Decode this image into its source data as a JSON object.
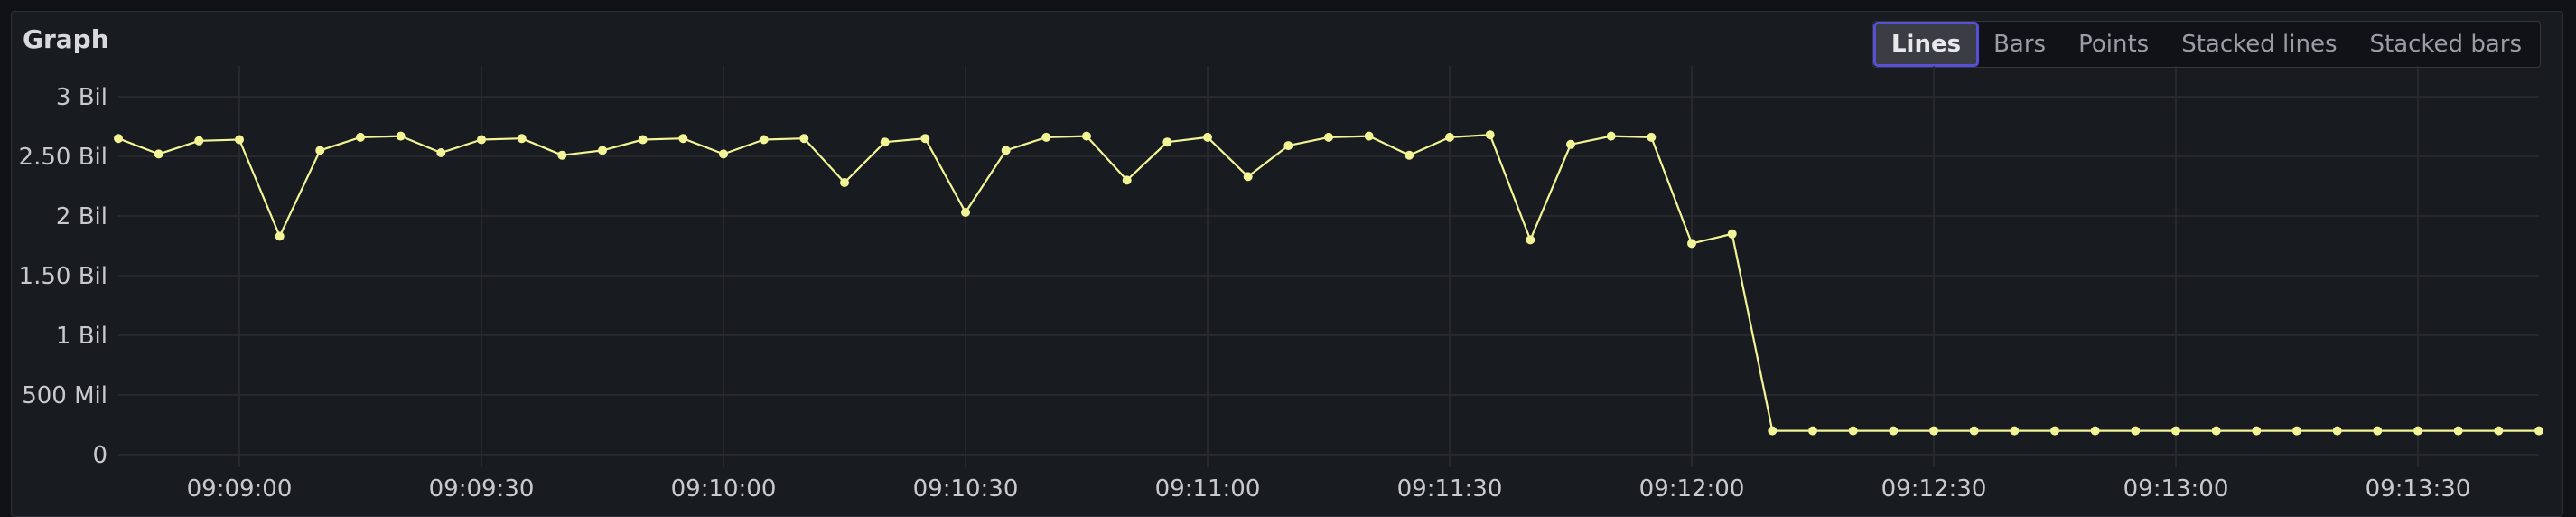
{
  "panel": {
    "title": "Graph"
  },
  "toggles": [
    {
      "label": "Lines",
      "active": true
    },
    {
      "label": "Bars",
      "active": false
    },
    {
      "label": "Points",
      "active": false
    },
    {
      "label": "Stacked lines",
      "active": false
    },
    {
      "label": "Stacked bars",
      "active": false
    }
  ],
  "colors": {
    "series": "#f2f495",
    "active_outline": "#5650d8"
  },
  "chart_data": {
    "type": "line",
    "title": "",
    "xlabel": "",
    "ylabel": "",
    "ylim": [
      0,
      3000000000
    ],
    "y_ticks": [
      0,
      500000000,
      1000000000,
      1500000000,
      2000000000,
      2500000000,
      3000000000
    ],
    "y_tick_labels": [
      "0",
      "500 Mil",
      "1 Bil",
      "1.50 Bil",
      "2 Bil",
      "2.50 Bil",
      "3 Bil"
    ],
    "x_range": [
      "09:08:45",
      "09:13:45"
    ],
    "x_ticks": [
      "09:09:00",
      "09:09:30",
      "09:10:00",
      "09:10:30",
      "09:11:00",
      "09:11:30",
      "09:12:00",
      "09:12:30",
      "09:13:00",
      "09:13:30"
    ],
    "grid": true,
    "series": [
      {
        "x": [
          "09:08:45",
          "09:08:50",
          "09:08:55",
          "09:09:00",
          "09:09:05",
          "09:09:10",
          "09:09:15",
          "09:09:20",
          "09:09:25",
          "09:09:30",
          "09:09:35",
          "09:09:40",
          "09:09:45",
          "09:09:50",
          "09:09:55",
          "09:10:00",
          "09:10:05",
          "09:10:10",
          "09:10:15",
          "09:10:20",
          "09:10:25",
          "09:10:30",
          "09:10:35",
          "09:10:40",
          "09:10:45",
          "09:10:50",
          "09:10:55",
          "09:11:00",
          "09:11:05",
          "09:11:10",
          "09:11:15",
          "09:11:20",
          "09:11:25",
          "09:11:30",
          "09:11:35",
          "09:11:40",
          "09:11:45",
          "09:11:50",
          "09:11:55",
          "09:12:00",
          "09:12:05",
          "09:12:10",
          "09:12:15",
          "09:12:20",
          "09:12:25",
          "09:12:30",
          "09:12:35",
          "09:12:40",
          "09:12:45",
          "09:12:50",
          "09:12:55",
          "09:13:00",
          "09:13:05",
          "09:13:10",
          "09:13:15",
          "09:13:20",
          "09:13:25",
          "09:13:30",
          "09:13:35",
          "09:13:40",
          "09:13:45"
        ],
        "values": [
          2650000000,
          2520000000,
          2630000000,
          2640000000,
          1830000000,
          2550000000,
          2660000000,
          2670000000,
          2530000000,
          2640000000,
          2650000000,
          2510000000,
          2550000000,
          2640000000,
          2650000000,
          2520000000,
          2640000000,
          2650000000,
          2280000000,
          2620000000,
          2650000000,
          2030000000,
          2550000000,
          2660000000,
          2670000000,
          2300000000,
          2620000000,
          2660000000,
          2330000000,
          2590000000,
          2660000000,
          2670000000,
          2510000000,
          2660000000,
          2680000000,
          1800000000,
          2600000000,
          2670000000,
          2660000000,
          1770000000,
          1850000000,
          200000000,
          200000000,
          200000000,
          200000000,
          200000000,
          200000000,
          200000000,
          200000000,
          200000000,
          200000000,
          200000000,
          200000000,
          200000000,
          200000000,
          200000000,
          200000000,
          200000000,
          200000000,
          200000000,
          200000000
        ]
      }
    ]
  }
}
